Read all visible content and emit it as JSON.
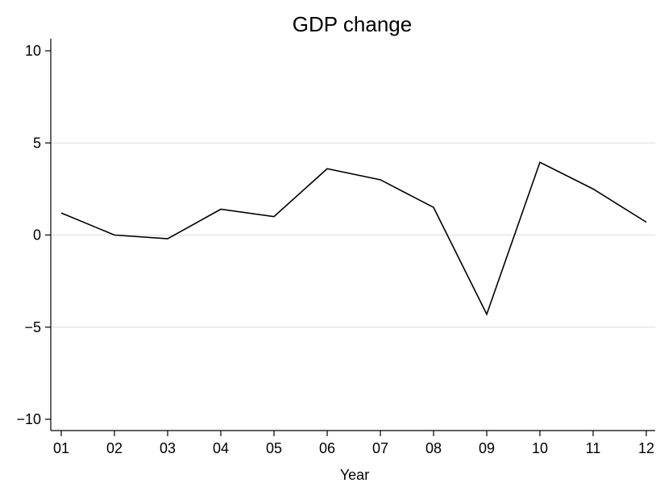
{
  "chart_data": {
    "type": "line",
    "title": "GDP change",
    "xlabel": "Year",
    "ylabel": "",
    "categories": [
      "01",
      "02",
      "03",
      "04",
      "05",
      "06",
      "07",
      "08",
      "09",
      "10",
      "11",
      "12"
    ],
    "series": [
      {
        "values": [
          1.2,
          0.0,
          -0.2,
          1.4,
          1.0,
          3.6,
          3.0,
          1.5,
          -4.3,
          3.95,
          2.5,
          0.7
        ]
      }
    ],
    "ylim": [
      -10,
      10
    ],
    "yticks": [
      -10,
      -5,
      0,
      5,
      10
    ],
    "ytick_labels": [
      "−10",
      "−5",
      "0",
      "5",
      "10"
    ],
    "grid": true,
    "legend": "none",
    "colors": {
      "line": "#000000",
      "grid": "#dcdcdc",
      "background": "#ffffff"
    }
  }
}
